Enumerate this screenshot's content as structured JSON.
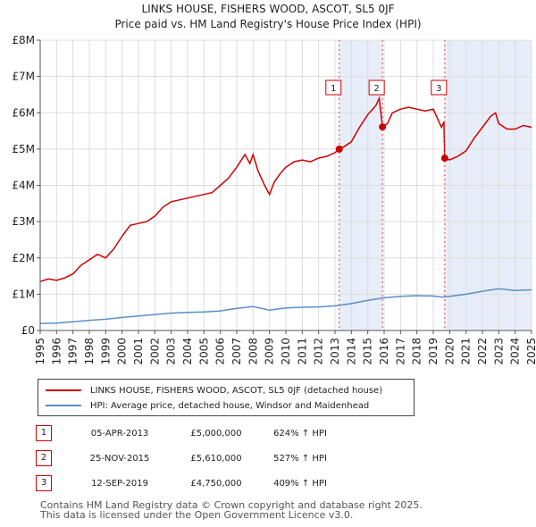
{
  "chart_data": {
    "type": "line",
    "title": "LINKS HOUSE, FISHERS WOOD, ASCOT, SL5 0JF",
    "subtitle": "Price paid vs. HM Land Registry's House Price Index (HPI)",
    "y_ticks": [
      "£0",
      "£1M",
      "£2M",
      "£3M",
      "£4M",
      "£5M",
      "£6M",
      "£7M",
      "£8M"
    ],
    "x_ticks": [
      "1995",
      "1996",
      "1997",
      "1998",
      "1999",
      "2000",
      "2001",
      "2002",
      "2003",
      "2004",
      "2005",
      "2006",
      "2007",
      "2008",
      "2009",
      "2010",
      "2011",
      "2012",
      "2013",
      "2014",
      "2015",
      "2016",
      "2017",
      "2018",
      "2019",
      "2020",
      "2021",
      "2022",
      "2023",
      "2024",
      "2025"
    ],
    "xlim": [
      1995,
      2025
    ],
    "ylim": [
      0,
      8000000
    ],
    "shaded_spans": [
      [
        2013.26,
        2015.9
      ],
      [
        2019.7,
        2025.0
      ]
    ],
    "sale_markers": [
      {
        "label": "1",
        "x": 2013.26,
        "y": 5000000
      },
      {
        "label": "2",
        "x": 2015.9,
        "y": 5610000
      },
      {
        "label": "3",
        "x": 2019.7,
        "y": 4750000
      }
    ],
    "series": [
      {
        "name": "LINKS HOUSE, FISHERS WOOD, ASCOT, SL5 0JF (detached house)",
        "color": "#cc0000",
        "points": [
          [
            1995,
            1350000
          ],
          [
            1995.5,
            1420000
          ],
          [
            1996,
            1380000
          ],
          [
            1996.5,
            1450000
          ],
          [
            1997,
            1560000
          ],
          [
            1997.5,
            1800000
          ],
          [
            1998,
            1950000
          ],
          [
            1998.5,
            2100000
          ],
          [
            1999,
            2000000
          ],
          [
            1999.5,
            2250000
          ],
          [
            2000,
            2600000
          ],
          [
            2000.5,
            2900000
          ],
          [
            2001,
            2950000
          ],
          [
            2001.5,
            3000000
          ],
          [
            2002,
            3150000
          ],
          [
            2002.5,
            3400000
          ],
          [
            2003,
            3550000
          ],
          [
            2003.5,
            3600000
          ],
          [
            2004,
            3650000
          ],
          [
            2004.5,
            3700000
          ],
          [
            2005,
            3750000
          ],
          [
            2005.5,
            3800000
          ],
          [
            2006,
            4000000
          ],
          [
            2006.5,
            4200000
          ],
          [
            2007,
            4500000
          ],
          [
            2007.5,
            4850000
          ],
          [
            2007.8,
            4600000
          ],
          [
            2008,
            4850000
          ],
          [
            2008.3,
            4400000
          ],
          [
            2008.7,
            4000000
          ],
          [
            2009,
            3750000
          ],
          [
            2009.3,
            4100000
          ],
          [
            2009.7,
            4350000
          ],
          [
            2010,
            4500000
          ],
          [
            2010.5,
            4650000
          ],
          [
            2011,
            4700000
          ],
          [
            2011.5,
            4650000
          ],
          [
            2012,
            4750000
          ],
          [
            2012.5,
            4800000
          ],
          [
            2013,
            4900000
          ],
          [
            2013.26,
            5000000
          ],
          [
            2013.5,
            5050000
          ],
          [
            2014,
            5200000
          ],
          [
            2014.5,
            5600000
          ],
          [
            2015,
            5950000
          ],
          [
            2015.5,
            6200000
          ],
          [
            2015.7,
            6400000
          ],
          [
            2015.9,
            5610000
          ],
          [
            2016.2,
            5700000
          ],
          [
            2016.5,
            6000000
          ],
          [
            2017,
            6100000
          ],
          [
            2017.5,
            6150000
          ],
          [
            2018,
            6100000
          ],
          [
            2018.5,
            6050000
          ],
          [
            2019,
            6100000
          ],
          [
            2019.5,
            5600000
          ],
          [
            2019.65,
            5750000
          ],
          [
            2019.7,
            4750000
          ],
          [
            2020,
            4700000
          ],
          [
            2020.5,
            4800000
          ],
          [
            2021,
            4950000
          ],
          [
            2021.5,
            5300000
          ],
          [
            2022,
            5600000
          ],
          [
            2022.5,
            5900000
          ],
          [
            2022.8,
            6000000
          ],
          [
            2023,
            5700000
          ],
          [
            2023.5,
            5550000
          ],
          [
            2024,
            5550000
          ],
          [
            2024.5,
            5650000
          ],
          [
            2025,
            5600000
          ]
        ]
      },
      {
        "name": "HPI: Average price, detached house, Windsor and Maidenhead",
        "color": "#5b8fc7",
        "points": [
          [
            1995,
            195000
          ],
          [
            1996,
            205000
          ],
          [
            1997,
            240000
          ],
          [
            1998,
            280000
          ],
          [
            1999,
            310000
          ],
          [
            2000,
            360000
          ],
          [
            2001,
            400000
          ],
          [
            2002,
            440000
          ],
          [
            2003,
            480000
          ],
          [
            2004,
            500000
          ],
          [
            2005,
            510000
          ],
          [
            2006,
            540000
          ],
          [
            2007,
            610000
          ],
          [
            2008,
            660000
          ],
          [
            2008.7,
            590000
          ],
          [
            2009,
            560000
          ],
          [
            2010,
            620000
          ],
          [
            2011,
            640000
          ],
          [
            2012,
            650000
          ],
          [
            2013,
            680000
          ],
          [
            2014,
            740000
          ],
          [
            2015,
            830000
          ],
          [
            2016,
            900000
          ],
          [
            2017,
            940000
          ],
          [
            2018,
            960000
          ],
          [
            2019,
            950000
          ],
          [
            2019.5,
            920000
          ],
          [
            2020,
            940000
          ],
          [
            2021,
            1000000
          ],
          [
            2022,
            1080000
          ],
          [
            2023,
            1150000
          ],
          [
            2024,
            1100000
          ],
          [
            2025,
            1120000
          ]
        ]
      }
    ]
  },
  "legend": {
    "property_label": "LINKS HOUSE, FISHERS WOOD, ASCOT, SL5 0JF (detached house)",
    "hpi_label": "HPI: Average price, detached house, Windsor and Maidenhead"
  },
  "sales": [
    {
      "num": "1",
      "date": "05-APR-2013",
      "price": "£5,000,000",
      "hpi": "624% ↑ HPI"
    },
    {
      "num": "2",
      "date": "25-NOV-2015",
      "price": "£5,610,000",
      "hpi": "527% ↑ HPI"
    },
    {
      "num": "3",
      "date": "12-SEP-2019",
      "price": "£4,750,000",
      "hpi": "409% ↑ HPI"
    }
  ],
  "footer": {
    "line1": "Contains HM Land Registry data © Crown copyright and database right 2025.",
    "line2": "This data is licensed under the Open Government Licence v3.0."
  }
}
